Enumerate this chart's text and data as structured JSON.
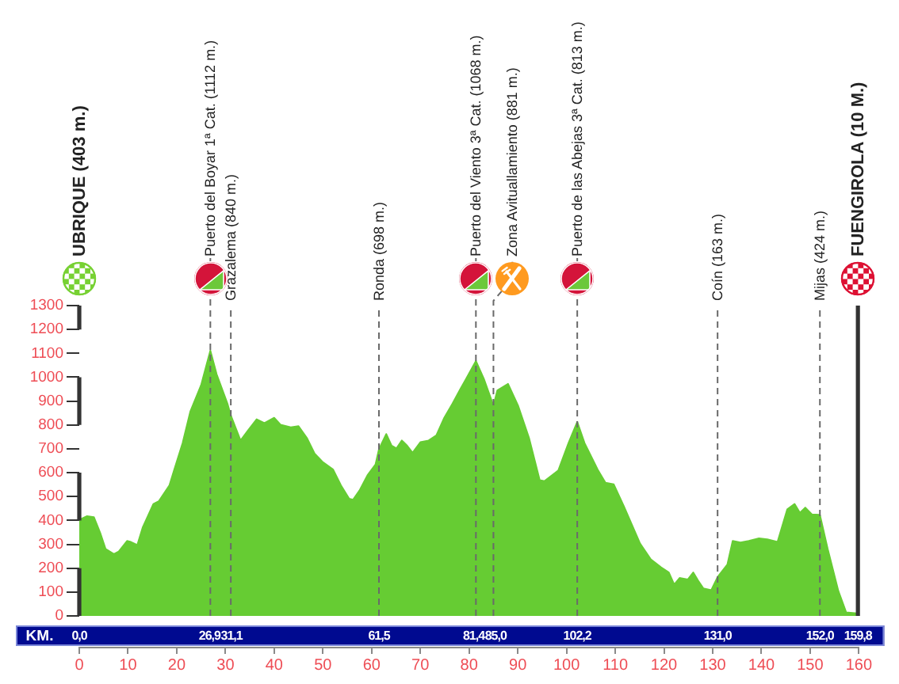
{
  "chart_data": {
    "type": "area",
    "color": "#66cc33",
    "x": [
      0,
      1.6,
      3,
      4.3,
      5.4,
      7.1,
      8.1,
      9.8,
      10.6,
      11.9,
      13,
      15.2,
      16.3,
      18.5,
      19.5,
      21.2,
      22.8,
      25,
      26.9,
      28.2,
      30.4,
      31.1,
      33.1,
      34.7,
      36.4,
      38,
      40,
      41.3,
      43.4,
      45,
      46.7,
      48.3,
      49.9,
      52.1,
      53.7,
      55.4,
      56.2,
      57.5,
      59.2,
      60.8,
      61.5,
      63,
      64.1,
      65.1,
      66.2,
      67.3,
      68.4,
      70,
      71.7,
      73.3,
      74.9,
      76.6,
      78.2,
      79.3,
      81.4,
      83.1,
      85.0,
      85.8,
      88,
      90.1,
      92.3,
      94.5,
      95.5,
      98.3,
      100.4,
      102.2,
      103.7,
      106.4,
      108,
      109.7,
      111.8,
      115.1,
      117.3,
      119.4,
      121,
      122.1,
      123.2,
      124.9,
      126,
      127,
      128.1,
      129.7,
      131.0,
      133,
      134.1,
      135.7,
      137.4,
      139.5,
      141.2,
      143.3,
      145.3,
      146.8,
      147.9,
      149,
      150.4,
      152.0,
      153.6,
      155.8,
      157.4,
      159.6,
      159.8
    ],
    "values": [
      403,
      418,
      414,
      348,
      281,
      259,
      270,
      314,
      310,
      297,
      370,
      469,
      480,
      547,
      613,
      724,
      857,
      967,
      1112,
      1012,
      890,
      840,
      735,
      779,
      824,
      808,
      830,
      801,
      790,
      795,
      746,
      680,
      646,
      613,
      547,
      491,
      487,
      525,
      591,
      635,
      698,
      762,
      713,
      702,
      735,
      713,
      684,
      728,
      735,
      757,
      830,
      890,
      950,
      990,
      1068,
      990,
      881,
      945,
      972,
      879,
      746,
      569,
      565,
      609,
      724,
      813,
      724,
      613,
      558,
      551,
      458,
      303,
      237,
      204,
      182,
      131,
      159,
      153,
      182,
      148,
      115,
      108,
      163,
      215,
      314,
      308,
      314,
      325,
      321,
      310,
      447,
      469,
      432,
      454,
      425,
      424,
      281,
      104,
      15,
      11,
      10
    ],
    "xlim": [
      0,
      160
    ],
    "xticks": [
      0,
      10,
      20,
      30,
      40,
      50,
      60,
      70,
      80,
      90,
      100,
      110,
      120,
      130,
      140,
      150,
      160
    ],
    "ylim": [
      0,
      1300
    ],
    "yticks": [
      0,
      100,
      200,
      300,
      400,
      500,
      600,
      700,
      800,
      900,
      1000,
      1100,
      1200,
      1300
    ],
    "x2label": "KM.",
    "x2lim": [
      0,
      160
    ],
    "x2ticks": [
      {
        "value": 0,
        "label": "0,0"
      },
      {
        "value": 26.9,
        "label": "26,9"
      },
      {
        "value": 31.1,
        "label": "31,1"
      },
      {
        "value": 61.5,
        "label": "61,5"
      },
      {
        "value": 81.4,
        "label": "81,4"
      },
      {
        "value": 85.0,
        "label": "85,0"
      },
      {
        "value": 102.2,
        "label": "102,2"
      },
      {
        "value": 131.0,
        "label": "131,0"
      },
      {
        "value": 152.0,
        "label": "152,0"
      },
      {
        "value": 159.8,
        "label": "159,8"
      }
    ],
    "ref_lines": [
      {
        "axis": "x",
        "value": 0,
        "label": "UBRIQUE (403 m.)",
        "color": "#333333",
        "line_style": "dashed"
      },
      {
        "axis": "x",
        "value": 26.9,
        "label": "Puerto del Boyar 1ª Cat. (1112 m.)"
      },
      {
        "axis": "x",
        "value": 31.1,
        "label": "Grazalema (840 m.)"
      },
      {
        "axis": "x",
        "value": 61.5,
        "label": "Ronda (698 m.)"
      },
      {
        "axis": "x",
        "value": 81.4,
        "label": "Puerto del Viento 3ª Cat. (1068 m.)"
      },
      {
        "axis": "x",
        "value": 85.0,
        "label": "Zona Avituallamiento (881 m.)"
      },
      {
        "axis": "x",
        "value": 102.2,
        "label": "Puerto de las Abejas 3ª Cat. (813 m.)"
      },
      {
        "axis": "x",
        "value": 131.0,
        "label": "Coín (163 m.)"
      },
      {
        "axis": "x",
        "value": 152.0,
        "label": "Mijas (424 m.)"
      },
      {
        "axis": "x",
        "value": 159.8,
        "label": "FUENGIROLA (10 M.)",
        "color": "#333333",
        "line_style": "solid"
      }
    ],
    "legend": false
  }
}
